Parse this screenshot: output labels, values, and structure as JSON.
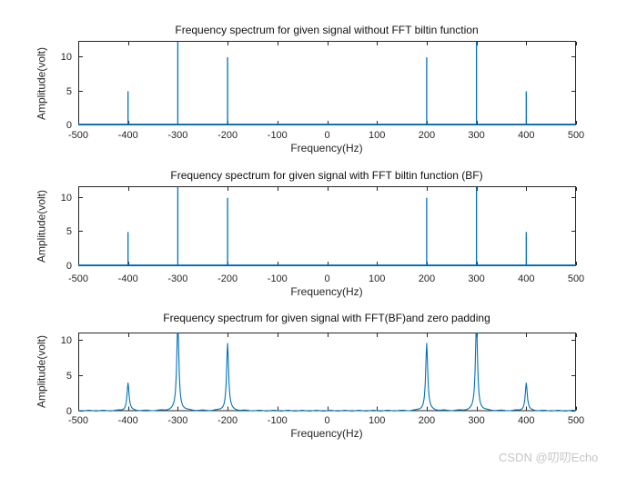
{
  "figure": {
    "background": "#ffffff"
  },
  "colors": {
    "line": "#0072BD",
    "axis": "#262626",
    "tick_text": "#262626",
    "title_text": "#111111",
    "watermark_text": "#c6c6c6"
  },
  "watermark": {
    "text": "CSDN @叨叨Echo"
  },
  "chart_data": [
    {
      "type": "line",
      "subtype": "impulse",
      "title": "Frequency spectrum for given signal without FFT biltin function",
      "xlabel": "Frequency(Hz)",
      "ylabel": "Amplitude(volt)",
      "xlim": [
        -500,
        500
      ],
      "ylim": [
        0,
        12.4
      ],
      "xticks": [
        -500,
        -400,
        -300,
        -200,
        -100,
        0,
        100,
        200,
        300,
        400,
        500
      ],
      "yticks": [
        0,
        5,
        10
      ],
      "grid": false,
      "legend": "none",
      "peaks": [
        {
          "freq": -400,
          "amp": 5
        },
        {
          "freq": -300,
          "amp": 15,
          "clipped_at_top": true
        },
        {
          "freq": -200,
          "amp": 10
        },
        {
          "freq": 200,
          "amp": 10
        },
        {
          "freq": 300,
          "amp": 15,
          "clipped_at_top": true
        },
        {
          "freq": 400,
          "amp": 5
        }
      ]
    },
    {
      "type": "line",
      "subtype": "impulse",
      "title": "Frequency spectrum for given signal with FFT biltin function (BF)",
      "xlabel": "Frequency(Hz)",
      "ylabel": "Amplitude(volt)",
      "xlim": [
        -500,
        500
      ],
      "ylim": [
        0,
        11.7
      ],
      "xticks": [
        -500,
        -400,
        -300,
        -200,
        -100,
        0,
        100,
        200,
        300,
        400,
        500
      ],
      "yticks": [
        0,
        5,
        10
      ],
      "grid": false,
      "legend": "none",
      "peaks": [
        {
          "freq": -400,
          "amp": 5
        },
        {
          "freq": -300,
          "amp": 15,
          "clipped_at_top": true
        },
        {
          "freq": -200,
          "amp": 10
        },
        {
          "freq": 200,
          "amp": 10
        },
        {
          "freq": 300,
          "amp": 15,
          "clipped_at_top": true
        },
        {
          "freq": 400,
          "amp": 5
        }
      ]
    },
    {
      "type": "line",
      "subtype": "sinc",
      "title": "Frequency spectrum for given signal with FFT(BF)and zero padding",
      "xlabel": "Frequency(Hz)",
      "ylabel": "Amplitude(volt)",
      "xlim": [
        -500,
        500
      ],
      "ylim": [
        0,
        11.1
      ],
      "xticks": [
        -500,
        -400,
        -300,
        -200,
        -100,
        0,
        100,
        200,
        300,
        400,
        500
      ],
      "yticks": [
        0,
        5,
        10
      ],
      "grid": false,
      "legend": "none",
      "peaks": [
        {
          "freq": -400,
          "amp": 3.9
        },
        {
          "freq": -300,
          "amp": 13,
          "clipped_at_top": true
        },
        {
          "freq": -200,
          "amp": 9.5
        },
        {
          "freq": 200,
          "amp": 9.5
        },
        {
          "freq": 300,
          "amp": 13,
          "clipped_at_top": true
        },
        {
          "freq": 400,
          "amp": 3.9
        }
      ]
    }
  ]
}
